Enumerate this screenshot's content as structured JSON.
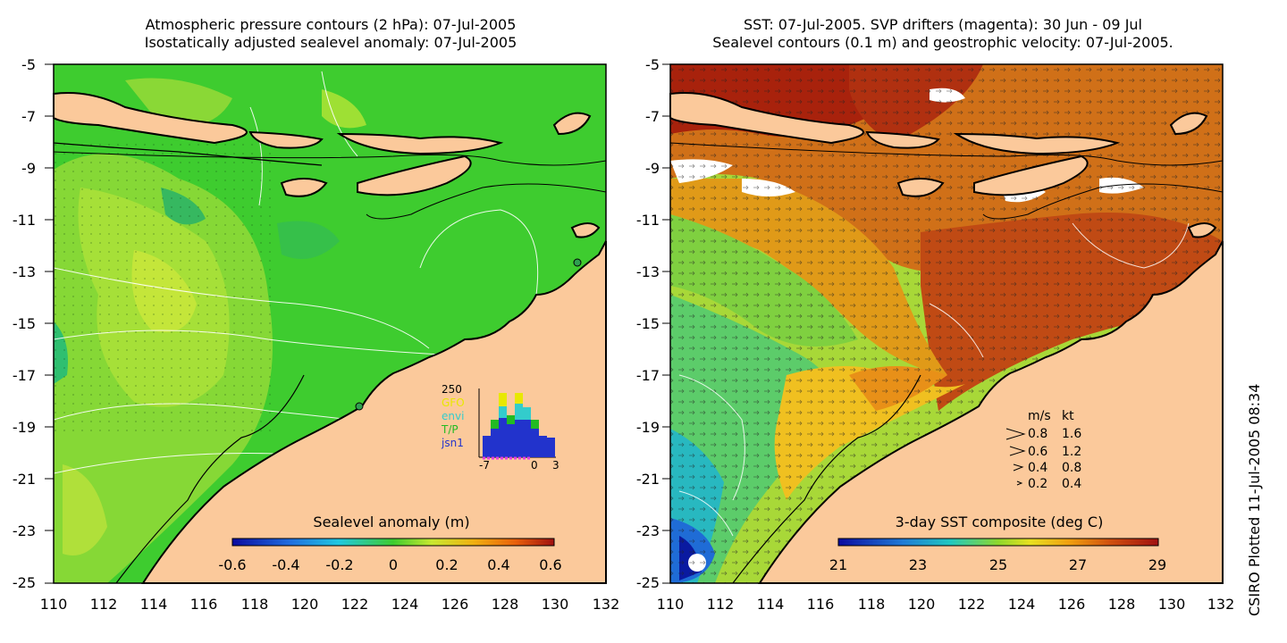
{
  "left_panel": {
    "title_line1": "Atmospheric pressure contours (2 hPa): 07-Jul-2005",
    "title_line2": "Isostatically adjusted sealevel anomaly: 07-Jul-2005",
    "colorbar_label": "Sealevel anomaly (m)",
    "colorbar_ticks": [
      "-0.6",
      "-0.4",
      "-0.2",
      "0",
      "0.2",
      "0.4",
      "0.6"
    ],
    "y_ticks": [
      "-5",
      "-7",
      "-9",
      "-11",
      "-13",
      "-15",
      "-17",
      "-19",
      "-21",
      "-23",
      "-25"
    ],
    "x_ticks": [
      "110",
      "112",
      "114",
      "116",
      "118",
      "120",
      "122",
      "124",
      "126",
      "128",
      "130",
      "132"
    ],
    "inset": {
      "top_value": "250",
      "legend": [
        {
          "label": "GFO",
          "color": "#e8e800"
        },
        {
          "label": "envi",
          "color": "#33cccc"
        },
        {
          "label": "T/P",
          "color": "#22bb22"
        },
        {
          "label": "jsn1",
          "color": "#2233cc"
        }
      ],
      "x_ticks": [
        "-7",
        "0",
        "3"
      ]
    }
  },
  "right_panel": {
    "title_line1": "SST: 07-Jul-2005. SVP drifters (magenta): 30 Jun - 09 Jul",
    "title_line2": "Sealevel contours (0.1 m) and geostrophic velocity: 07-Jul-2005.",
    "colorbar_label": "3-day SST composite (deg C)",
    "colorbar_ticks": [
      "21",
      "23",
      "25",
      "27",
      "29"
    ],
    "y_ticks": [
      "-5",
      "-7",
      "-9",
      "-11",
      "-13",
      "-15",
      "-17",
      "-19",
      "-21",
      "-23",
      "-25"
    ],
    "x_ticks": [
      "110",
      "112",
      "114",
      "116",
      "118",
      "120",
      "122",
      "124",
      "126",
      "128",
      "130",
      "132"
    ],
    "velocity_legend": {
      "header_ms": "m/s",
      "header_kt": "kt",
      "rows": [
        {
          "ms": "0.8",
          "kt": "1.6"
        },
        {
          "ms": "0.6",
          "kt": "1.2"
        },
        {
          "ms": "0.4",
          "kt": "0.8"
        },
        {
          "ms": "0.2",
          "kt": "0.4"
        }
      ]
    }
  },
  "side_label": "CSIRO Plotted 11-Jul-2005 08:34",
  "colors": {
    "land": "#fbc99b",
    "ocean_green": "#3ecc2f",
    "ocean_yellowgreen": "#9ee034",
    "sst_warm": "#c35a14",
    "sst_hot": "#a01a0a",
    "sst_cool": "#1e7ad6"
  }
}
